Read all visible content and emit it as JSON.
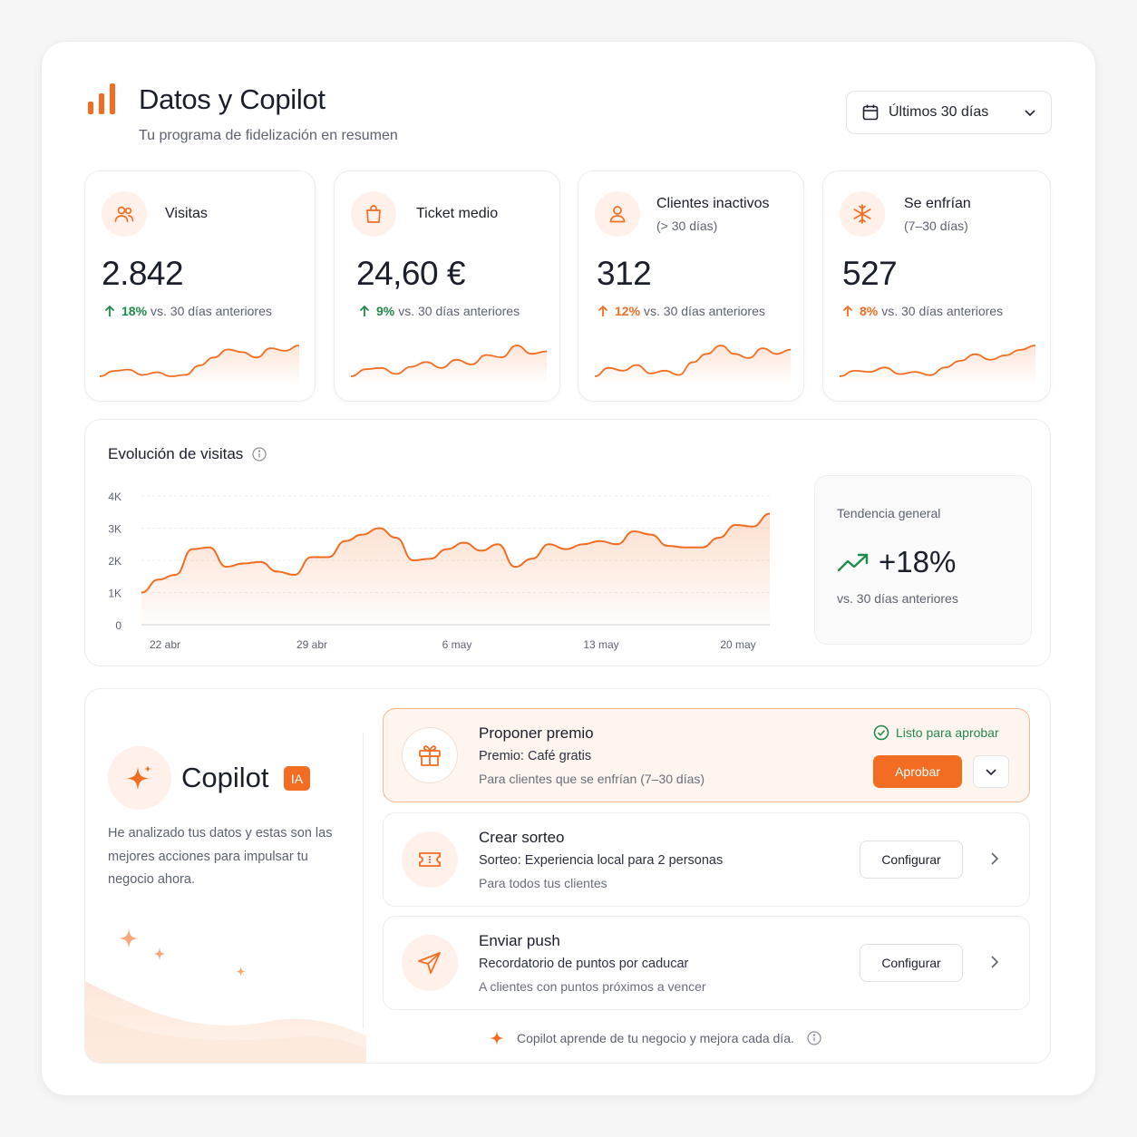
{
  "header": {
    "title": "Datos y Copilot",
    "subtitle": "Tu programa de fidelización en resumen",
    "range_label": "Últimos 30 días"
  },
  "colors": {
    "accent": "#f26d22",
    "positive": "#1f8a4c",
    "text": "#1b1e2b",
    "muted": "#5d6270"
  },
  "kpis": [
    {
      "icon": "users-icon",
      "label": "Visitas",
      "sublabel": "",
      "value": "2.842",
      "delta": "18%",
      "delta_color": "#1f8a4c",
      "compare": "vs. 30 días anteriores",
      "spark": [
        14,
        18,
        19,
        15,
        17,
        14,
        15,
        22,
        28,
        34,
        32,
        28,
        35,
        33,
        37
      ]
    },
    {
      "icon": "bag-icon",
      "label": "Ticket medio",
      "sublabel": "",
      "value": "24,60 €",
      "delta": "9%",
      "delta_color": "#1f8a4c",
      "compare": "vs. 30 días anteriores",
      "spark": [
        12,
        18,
        19,
        14,
        20,
        24,
        19,
        26,
        22,
        30,
        28,
        38,
        31,
        33
      ]
    },
    {
      "icon": "user-icon",
      "label": "Clientes inactivos",
      "sublabel": "(> 30 días)",
      "value": "312",
      "delta": "12%",
      "delta_color": "#f26d22",
      "compare": "vs. 30 días anteriores",
      "spark": [
        14,
        20,
        18,
        22,
        16,
        18,
        15,
        24,
        30,
        36,
        30,
        27,
        34,
        30,
        33
      ]
    },
    {
      "icon": "snowflake-icon",
      "label": "Se enfrían",
      "sublabel": "(7–30 días)",
      "value": "527",
      "delta": "8%",
      "delta_color": "#f26d22",
      "compare": "vs. 30 días anteriores",
      "spark": [
        12,
        17,
        16,
        20,
        14,
        16,
        13,
        20,
        26,
        32,
        27,
        31,
        36,
        40
      ]
    }
  ],
  "evolution": {
    "title": "Evolución de visitas",
    "trend_label": "Tendencia general",
    "trend_value": "+18%",
    "trend_compare": "vs. 30 días anteriores"
  },
  "chart_data": {
    "type": "area",
    "title": "Evolución de visitas",
    "xlabel": "",
    "ylabel": "",
    "ylim": [
      0,
      4000
    ],
    "y_ticks": [
      "0",
      "1K",
      "2K",
      "3K",
      "4K"
    ],
    "x_ticks": [
      "22 abr",
      "29 abr",
      "6 may",
      "13 may",
      "20 may"
    ],
    "grid": true,
    "series": [
      {
        "values": [
          1000,
          1400,
          1550,
          2350,
          2400,
          1800,
          1900,
          1950,
          1650,
          1550,
          2100,
          2100,
          2600,
          2800,
          3000,
          2700,
          2000,
          2050,
          2350,
          2550,
          2300,
          2500,
          1800,
          2050,
          2500,
          2350,
          2500,
          2600,
          2500,
          2900,
          2800,
          2450,
          2400,
          2400,
          2700,
          3100,
          3050,
          3450
        ]
      }
    ]
  },
  "copilot": {
    "name": "Copilot",
    "badge": "IA",
    "description": "He analizado tus datos y estas son las mejores acciones para impulsar tu negocio ahora.",
    "actions": [
      {
        "icon": "gift-icon",
        "title": "Proponer premio",
        "detail": "Premio: Café gratis",
        "audience": "Para clientes que se enfrían (7–30 días)",
        "status": "Listo para aprobar",
        "button": "Aprobar"
      },
      {
        "icon": "ticket-icon",
        "title": "Crear sorteo",
        "detail": "Sorteo: Experiencia local para 2 personas",
        "audience": "Para todos tus clientes",
        "button": "Configurar"
      },
      {
        "icon": "send-icon",
        "title": "Enviar push",
        "detail": "Recordatorio de puntos por caducar",
        "audience": "A clientes con puntos próximos a vencer",
        "button": "Configurar"
      }
    ],
    "footer": "Copilot aprende de tu negocio y mejora cada día."
  }
}
